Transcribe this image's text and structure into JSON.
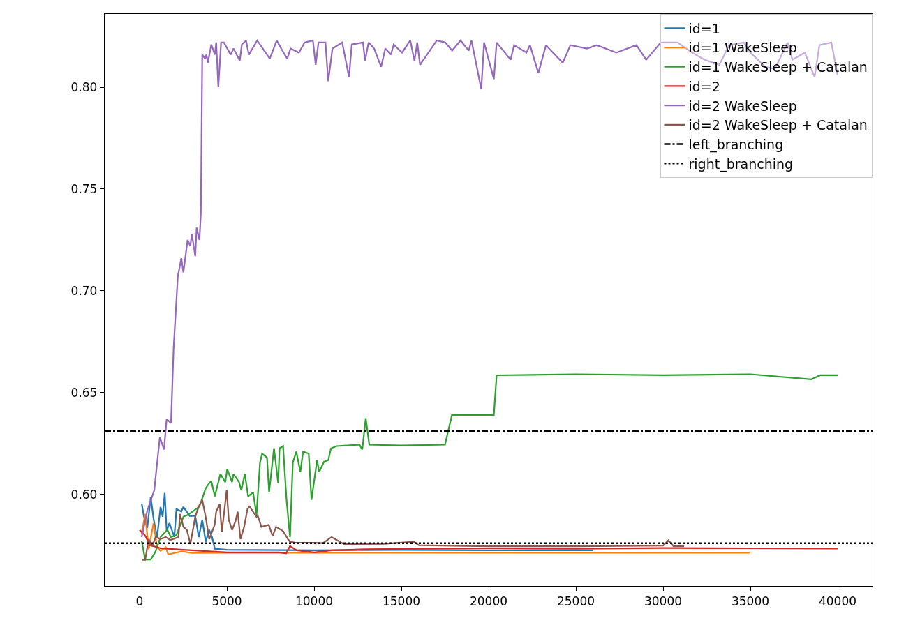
{
  "chart_data": {
    "type": "line",
    "legend": "top right",
    "marker": "none",
    "line_style": "solid",
    "xlim": [
      -2000,
      42000
    ],
    "xticks": [
      0,
      5000,
      10000,
      15000,
      20000,
      25000,
      30000,
      35000,
      40000
    ],
    "ylim": [
      0.555,
      0.836
    ],
    "yticks": [
      {
        "value": 0.6,
        "label": "0.60"
      },
      {
        "value": 0.65,
        "label": "0.65"
      },
      {
        "value": 0.7,
        "label": "0.70"
      },
      {
        "value": 0.75,
        "label": "0.75"
      },
      {
        "value": 0.8,
        "label": "0.80"
      }
    ],
    "series": [
      {
        "name": "id=1",
        "color": "#1f77b4",
        "x": [
          120,
          240,
          440,
          640,
          800,
          1000,
          1200,
          1320,
          1440,
          1550,
          1710,
          1990,
          2110,
          2390,
          2510,
          2870,
          3190,
          3390,
          3590,
          3790,
          3990,
          4150,
          4310,
          5000,
          10000,
          15000,
          20000,
          26000
        ],
        "values": [
          0.5955,
          0.5894,
          0.5835,
          0.5986,
          0.588,
          0.579,
          0.5938,
          0.589,
          0.6007,
          0.582,
          0.5859,
          0.579,
          0.5928,
          0.5915,
          0.5938,
          0.5894,
          0.5894,
          0.579,
          0.5875,
          0.5767,
          0.5825,
          0.579,
          0.5733,
          0.5728,
          0.5725,
          0.5727,
          0.5725,
          0.5725
        ]
      },
      {
        "name": "id=1 WakeSleep",
        "color": "#ff7f0e",
        "x": [
          120,
          320,
          520,
          800,
          1000,
          1200,
          1500,
          1640,
          2000,
          2400,
          3000,
          5000,
          10000,
          20000,
          35000
        ],
        "values": [
          0.5805,
          0.5904,
          0.573,
          0.5859,
          0.574,
          0.5722,
          0.574,
          0.5705,
          0.5712,
          0.572,
          0.5712,
          0.5713,
          0.5713,
          0.5713,
          0.5713
        ]
      },
      {
        "name": "id=1 WakeSleep + Catalan",
        "color": "#2ca02c",
        "x": [
          120,
          320,
          640,
          920,
          1200,
          1590,
          1790,
          2110,
          2510,
          2790,
          3110,
          3430,
          3790,
          3990,
          4110,
          4310,
          4630,
          4910,
          5020,
          5300,
          5380,
          5700,
          5830,
          6030,
          6220,
          6500,
          6700,
          6900,
          7020,
          7300,
          7420,
          7700,
          7940,
          8020,
          8220,
          8420,
          8620,
          8780,
          8980,
          9210,
          9370,
          9690,
          9850,
          10170,
          10290,
          10570,
          10810,
          10970,
          11290,
          12600,
          12760,
          12960,
          13160,
          15000,
          17500,
          17900,
          20300,
          20460,
          25000,
          30000,
          35000,
          38500,
          39000,
          40000
        ],
        "values": [
          0.577,
          0.568,
          0.568,
          0.572,
          0.579,
          0.5825,
          0.579,
          0.58,
          0.589,
          0.59,
          0.592,
          0.594,
          0.603,
          0.6055,
          0.6065,
          0.599,
          0.61,
          0.606,
          0.6124,
          0.606,
          0.61,
          0.606,
          0.602,
          0.61,
          0.599,
          0.601,
          0.59,
          0.6156,
          0.62,
          0.618,
          0.601,
          0.6226,
          0.6055,
          0.6226,
          0.6237,
          0.5973,
          0.579,
          0.6156,
          0.621,
          0.611,
          0.621,
          0.62,
          0.5973,
          0.6168,
          0.611,
          0.616,
          0.6168,
          0.6226,
          0.6237,
          0.6244,
          0.622,
          0.6374,
          0.6244,
          0.624,
          0.6244,
          0.639,
          0.639,
          0.6585,
          0.659,
          0.6585,
          0.659,
          0.6565,
          0.6585,
          0.6585
        ]
      },
      {
        "name": "id=2",
        "color": "#d62728",
        "x": [
          0,
          300,
          600,
          1200,
          3000,
          5000,
          8000,
          8400,
          8620,
          9000,
          10000,
          11000,
          13000,
          16000,
          20000,
          25000,
          30000,
          35000,
          40000
        ],
        "values": [
          0.5825,
          0.58,
          0.575,
          0.5735,
          0.5725,
          0.5715,
          0.5715,
          0.571,
          0.5746,
          0.5725,
          0.5715,
          0.5725,
          0.573,
          0.5733,
          0.5735,
          0.5733,
          0.5736,
          0.5735,
          0.5734
        ]
      },
      {
        "name": "id=2 WakeSleep",
        "color": "#9467bd",
        "x": [
          120,
          440,
          840,
          1160,
          1400,
          1550,
          1800,
          1950,
          2190,
          2390,
          2510,
          2750,
          2910,
          2990,
          3190,
          3270,
          3430,
          3510,
          3590,
          3750,
          3830,
          3910,
          4110,
          4310,
          4390,
          4510,
          4670,
          4830,
          5220,
          5380,
          5740,
          5860,
          6100,
          6260,
          6740,
          7060,
          7460,
          7860,
          8180,
          8460,
          8650,
          9130,
          9450,
          9930,
          10090,
          10250,
          10650,
          10810,
          11050,
          11610,
          12000,
          12160,
          12800,
          12920,
          13120,
          13440,
          13840,
          14080,
          14400,
          14560,
          15040,
          15510,
          15750,
          15910,
          16070,
          17030,
          17510,
          17910,
          18390,
          18860,
          19020,
          19580,
          19740,
          20300,
          20460,
          21260,
          21460,
          22170,
          22370,
          22850,
          23290,
          23690,
          24250,
          24690,
          25640,
          26200,
          27320,
          28470,
          29030,
          29870,
          30830,
          31660,
          32380,
          33220,
          33780,
          34620,
          35010,
          35850,
          36410,
          37130,
          37410,
          38120,
          38680,
          38960,
          39640,
          40000
        ],
        "values": [
          0.579,
          0.592,
          0.602,
          0.628,
          0.622,
          0.637,
          0.635,
          0.672,
          0.707,
          0.716,
          0.709,
          0.725,
          0.722,
          0.728,
          0.717,
          0.731,
          0.725,
          0.738,
          0.816,
          0.814,
          0.816,
          0.812,
          0.821,
          0.816,
          0.822,
          0.8,
          0.822,
          0.822,
          0.816,
          0.819,
          0.813,
          0.821,
          0.823,
          0.816,
          0.823,
          0.819,
          0.814,
          0.823,
          0.818,
          0.814,
          0.819,
          0.817,
          0.822,
          0.823,
          0.811,
          0.822,
          0.822,
          0.803,
          0.819,
          0.822,
          0.805,
          0.821,
          0.822,
          0.813,
          0.822,
          0.819,
          0.81,
          0.819,
          0.816,
          0.821,
          0.817,
          0.823,
          0.813,
          0.822,
          0.811,
          0.823,
          0.822,
          0.818,
          0.823,
          0.818,
          0.823,
          0.799,
          0.822,
          0.804,
          0.822,
          0.8135,
          0.8207,
          0.817,
          0.8207,
          0.807,
          0.8207,
          0.817,
          0.812,
          0.8207,
          0.819,
          0.8207,
          0.817,
          0.8207,
          0.8135,
          0.822,
          0.822,
          0.817,
          0.8135,
          0.811,
          0.8207,
          0.822,
          0.817,
          0.81,
          0.809,
          0.822,
          0.8135,
          0.817,
          0.805,
          0.8207,
          0.822,
          0.806
        ]
      },
      {
        "name": "id=2 WakeSleep + Catalan",
        "color": "#8c564b",
        "x": [
          120,
          320,
          520,
          720,
          920,
          1200,
          1500,
          1750,
          2230,
          2310,
          2510,
          2710,
          2910,
          3190,
          3390,
          3590,
          3790,
          3990,
          4300,
          4390,
          4590,
          4710,
          4830,
          4990,
          5110,
          5300,
          5500,
          5620,
          5780,
          5990,
          6180,
          6300,
          6700,
          6780,
          6980,
          7400,
          7620,
          7820,
          8220,
          8500,
          8620,
          8900,
          10000,
          10500,
          11000,
          11700,
          14000,
          15720,
          16000,
          20000,
          25000,
          30000,
          30300,
          30600,
          31200
        ],
        "values": [
          0.5678,
          0.5678,
          0.578,
          0.5745,
          0.579,
          0.578,
          0.579,
          0.5775,
          0.579,
          0.5904,
          0.584,
          0.5825,
          0.5756,
          0.589,
          0.594,
          0.5973,
          0.5887,
          0.578,
          0.585,
          0.5915,
          0.5952,
          0.5815,
          0.59,
          0.6021,
          0.5875,
          0.5825,
          0.587,
          0.5915,
          0.578,
          0.584,
          0.5928,
          0.594,
          0.589,
          0.5893,
          0.584,
          0.585,
          0.5795,
          0.584,
          0.582,
          0.578,
          0.5767,
          0.5763,
          0.5762,
          0.576,
          0.579,
          0.5756,
          0.5757,
          0.5767,
          0.575,
          0.5745,
          0.5745,
          0.5748,
          0.5774,
          0.5745,
          0.5745
        ]
      }
    ],
    "ref_lines": [
      {
        "axis": "y",
        "value": 0.631,
        "label": "left_branching",
        "color": "#000000",
        "line_style": "dashdot"
      },
      {
        "axis": "y",
        "value": 0.576,
        "label": "right_branching",
        "color": "#000000",
        "line_style": "dotted"
      }
    ]
  }
}
